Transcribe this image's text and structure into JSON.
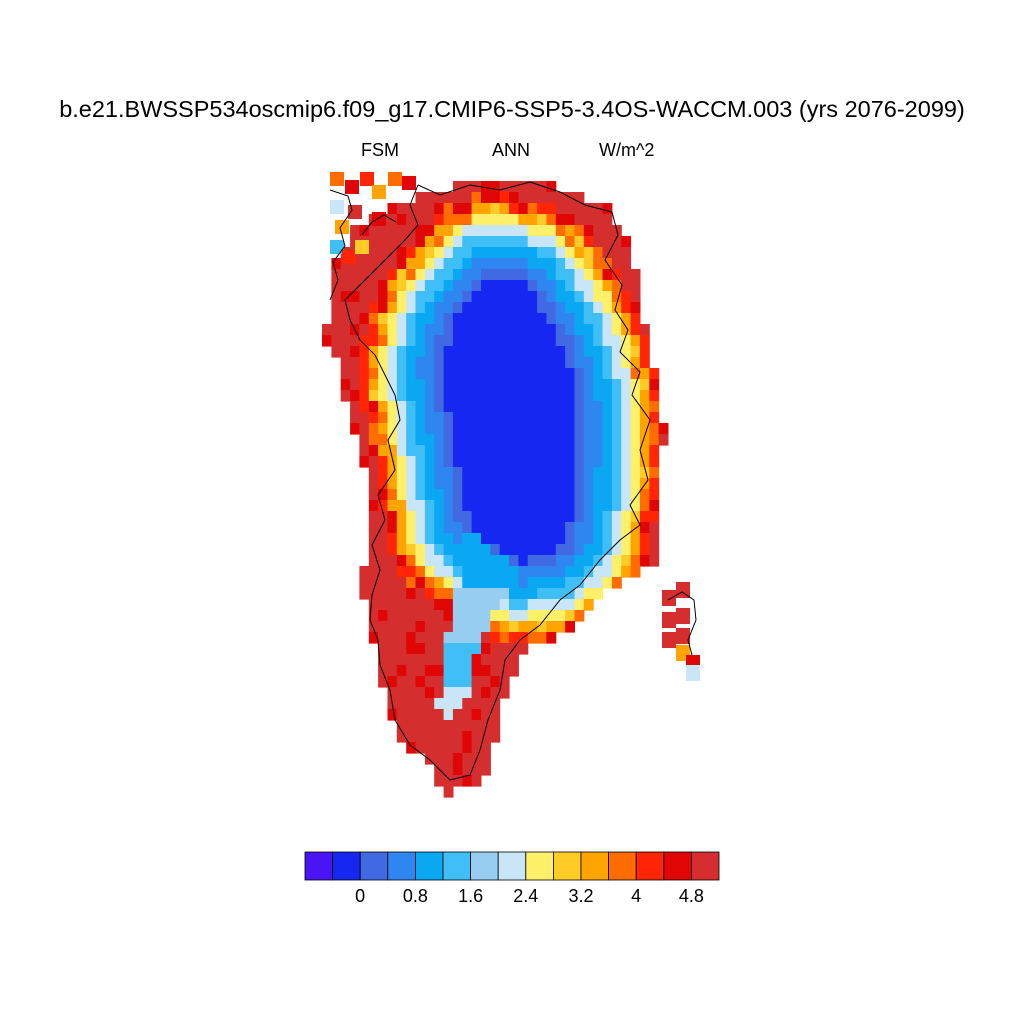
{
  "title": "b.e21.BWSSP534oscmip6.f09_g17.CMIP6-SSP5-3.4OS-WACCM.003 (yrs 2076-2099)",
  "left_string": "FSM",
  "center_string": "ANN",
  "right_string": "W/m^2",
  "map": {
    "region": "Greenland",
    "projection": "polar stereographic",
    "field": "FSM",
    "continent_outlines": true,
    "pattern": "low values (0-0.4 W/m^2) over the ice-sheet interior, rising through blues and pale yellow near the ice margin to 5.2+ W/m^2 (dark red) along the coasts"
  },
  "colorbar": {
    "colors": [
      "#4a14f5",
      "#1727f2",
      "#4169e1",
      "#2f86f0",
      "#0aa8f3",
      "#3fbff5",
      "#97cdf0",
      "#c8e6f7",
      "#fff06a",
      "#ffcb26",
      "#ffa400",
      "#ff6c00",
      "#ff2505",
      "#e10606",
      "#d42e2e"
    ],
    "levels": [
      -0.4,
      0,
      0.4,
      0.8,
      1.2,
      1.6,
      2.0,
      2.4,
      2.8,
      3.2,
      3.6,
      4.0,
      4.4,
      4.8,
      5.2
    ],
    "tick_labels": [
      "0",
      "0.8",
      "1.6",
      "2.4",
      "3.2",
      "4",
      "4.8"
    ],
    "units": "W/m^2"
  }
}
